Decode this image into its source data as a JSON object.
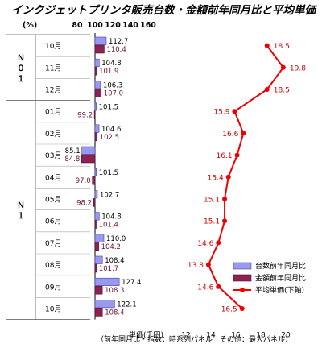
{
  "title": "インクジェットプリンタ販売台数・金額前年同月比と平均単価",
  "footnote": "（前年同月比・指数：時系列パネル　その他：最大パネル）",
  "year_labels": [
    {
      "label": "Ｎ０１"
    },
    {
      "label": "Ｎ１"
    }
  ],
  "chart_data": {
    "type": "bar",
    "categories": [
      "10月",
      "11月",
      "12月",
      "01月",
      "02月",
      "03月",
      "04月",
      "05月",
      "06月",
      "07月",
      "08月",
      "09月",
      "10月"
    ],
    "top_axis": {
      "unit_label": "(%)",
      "ticks": [
        "80",
        "100",
        "120",
        "140",
        "160"
      ],
      "range": [
        80,
        160
      ]
    },
    "bottom_axis": {
      "label": "単価(千円)",
      "ticks": [
        "12",
        "14",
        "16",
        "18",
        "20"
      ],
      "range": [
        12,
        20
      ]
    },
    "series": [
      {
        "name": "台数前年同月比",
        "type": "bar",
        "color": "#8080ee",
        "values": [
          112.7,
          104.8,
          106.3,
          101.5,
          104.6,
          85.1,
          101.5,
          102.7,
          104.8,
          110.0,
          108.4,
          127.4,
          122.1
        ]
      },
      {
        "name": "金額前年同月比",
        "type": "bar",
        "color": "#8b2252",
        "values": [
          110.4,
          101.9,
          107.0,
          99.2,
          102.5,
          84.8,
          97.0,
          98.2,
          101.4,
          104.2,
          101.7,
          108.3,
          108.4
        ]
      },
      {
        "name": "平均単価(下軸)",
        "type": "line",
        "color": "#ee0000",
        "values": [
          18.5,
          19.8,
          18.5,
          15.9,
          16.6,
          16.1,
          15.4,
          15.1,
          15.1,
          14.6,
          13.8,
          14.6,
          16.5
        ]
      }
    ],
    "legend_position": "bottom-right"
  }
}
